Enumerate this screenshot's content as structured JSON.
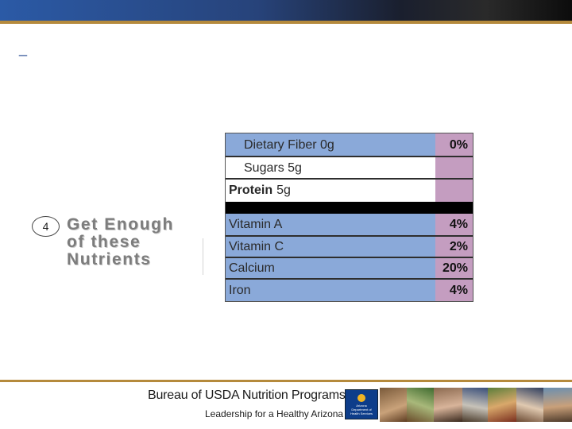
{
  "slide": {
    "dash": "_"
  },
  "callout": {
    "step_number": "4",
    "lines": [
      "Get Enough",
      "of these",
      "Nutrients"
    ]
  },
  "nutrition_panel": {
    "rows": [
      {
        "name": "Dietary Fiber 0g",
        "dv": "0%"
      },
      {
        "name": "Sugars 5g",
        "dv": ""
      },
      {
        "name_bold": "Protein",
        "amount": "5g",
        "dv": ""
      },
      {
        "name": "Vitamin A",
        "dv": "4%"
      },
      {
        "name": "Vitamin C",
        "dv": "2%"
      },
      {
        "name": "Calcium",
        "dv": "20%"
      },
      {
        "name": "Iron",
        "dv": "4%"
      }
    ],
    "colors": {
      "row_blue": "#8aa9d9",
      "dv_pink": "#c49dc0"
    }
  },
  "footer": {
    "title": "Bureau of USDA Nutrition Programs",
    "subtitle": "Leadership for a Healthy Arizona",
    "logo_text": [
      "Arizona",
      "Department of",
      "Health Services"
    ]
  },
  "theme": {
    "banner_blue": "#2b5aa6",
    "accent_gold": "#b58a3c"
  }
}
